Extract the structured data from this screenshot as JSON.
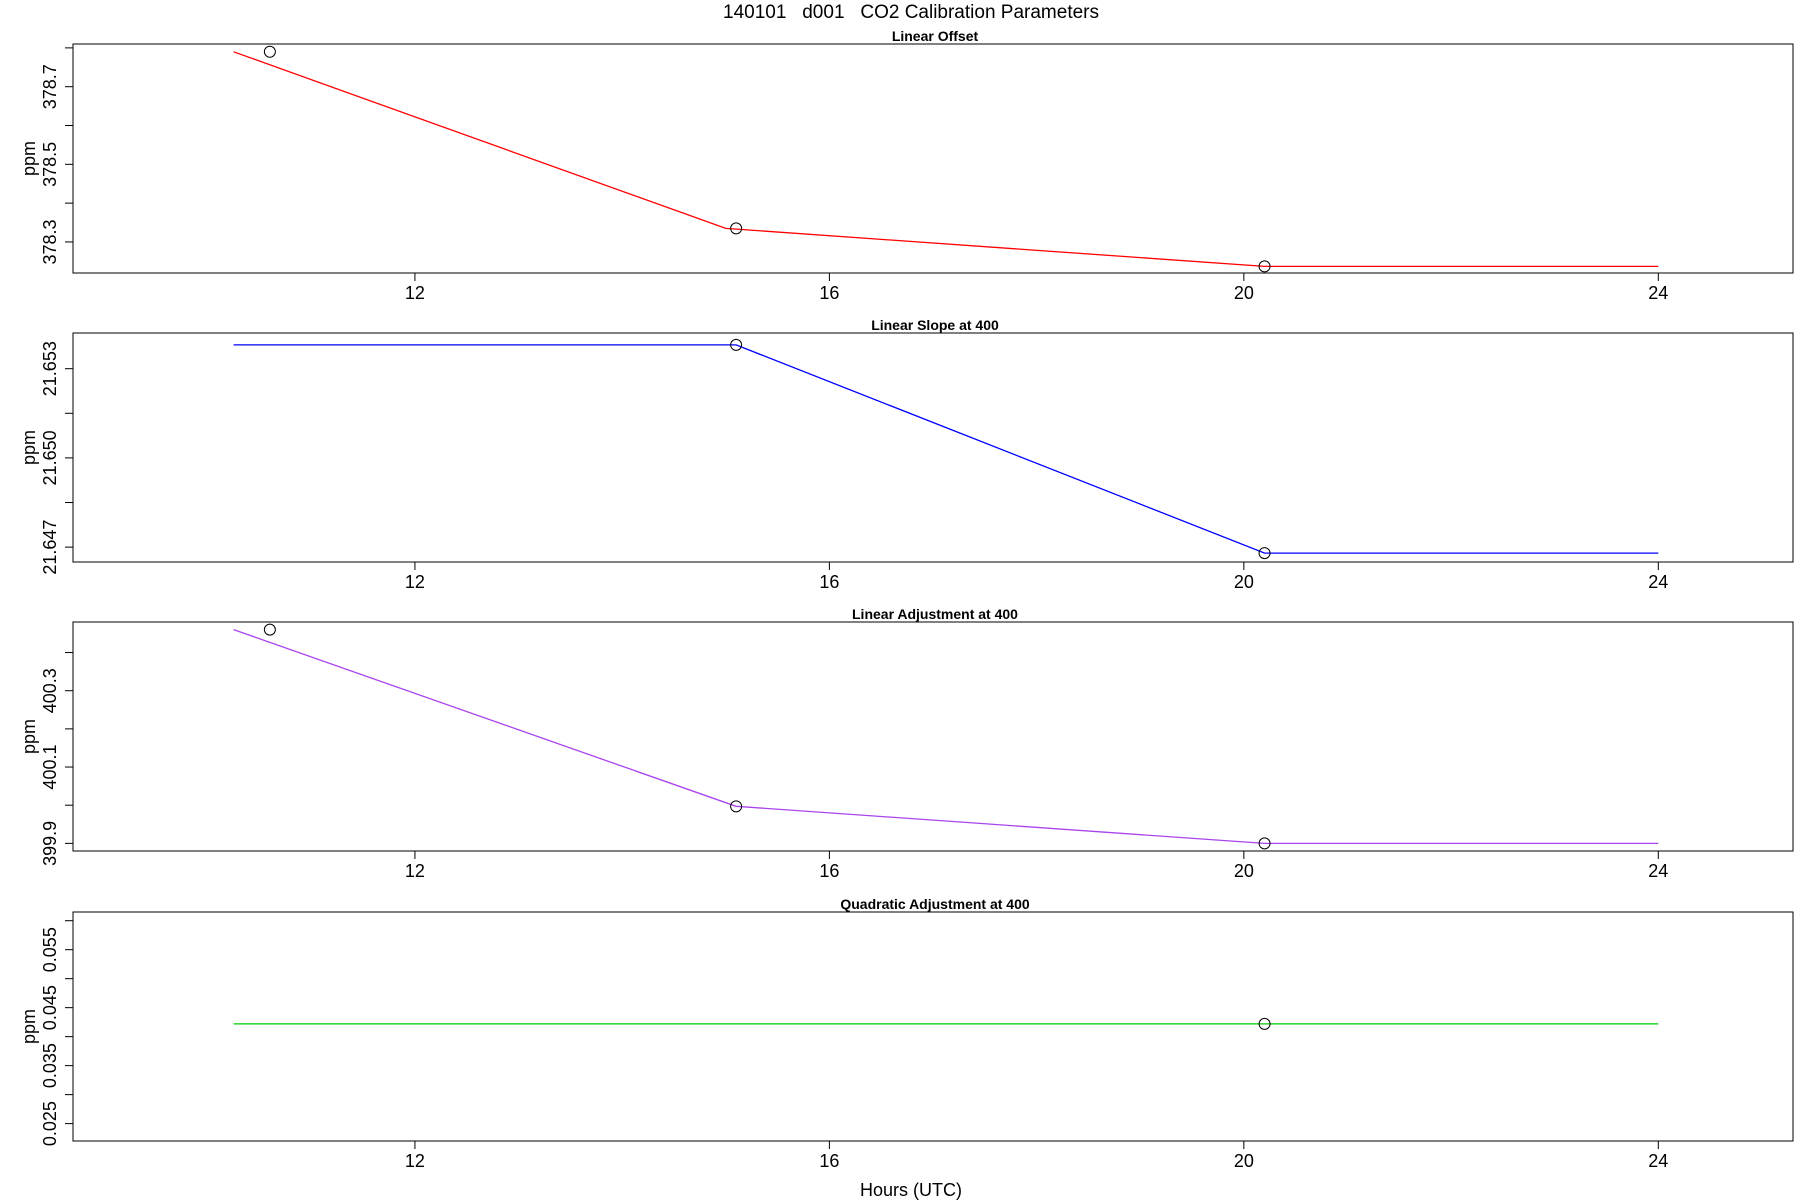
{
  "figure": {
    "title": "140101   d001   CO2 Calibration Parameters",
    "xlabel": "Hours (UTC)"
  },
  "chart_data": [
    {
      "type": "line",
      "title": "Linear Offset",
      "ylabel": "ppm",
      "color": "#ff0000",
      "xlim": [
        8.7,
        25.3
      ],
      "xticks": [
        "12",
        "16",
        "20",
        "24"
      ],
      "ylim": [
        378.22,
        378.81
      ],
      "yticks": [
        "378.3",
        "378.5",
        "378.7"
      ],
      "line": {
        "x": [
          10.25,
          15.0,
          20.2,
          24.0
        ],
        "y": [
          378.79,
          378.335,
          378.237,
          378.237
        ]
      },
      "points": {
        "x": [
          10.6,
          15.1,
          20.2
        ],
        "y": [
          378.79,
          378.335,
          378.237
        ]
      }
    },
    {
      "type": "line",
      "title": "Linear Slope at 400",
      "ylabel": "ppm",
      "color": "#0000ff",
      "xlim": [
        8.7,
        25.3
      ],
      "xticks": [
        "12",
        "16",
        "20",
        "24"
      ],
      "ylim": [
        21.6465,
        21.6542
      ],
      "yticks": [
        "21.647",
        "21.650",
        "21.653"
      ],
      "line": {
        "x": [
          10.25,
          15.1,
          20.2,
          24.0
        ],
        "y": [
          21.6538,
          21.6538,
          21.6468,
          21.6468
        ]
      },
      "points": {
        "x": [
          15.1,
          20.2
        ],
        "y": [
          21.6538,
          21.6468
        ]
      }
    },
    {
      "type": "line",
      "title": "Linear Adjustment at 400",
      "ylabel": "ppm",
      "color": "#aa44ee",
      "xlim": [
        8.7,
        25.3
      ],
      "xticks": [
        "12",
        "16",
        "20",
        "24"
      ],
      "ylim": [
        399.88,
        400.48
      ],
      "yticks": [
        "399.9",
        "400.1",
        "400.3"
      ],
      "line": {
        "x": [
          10.25,
          15.1,
          20.2,
          24.0
        ],
        "y": [
          400.46,
          399.997,
          399.9,
          399.9
        ]
      },
      "points": {
        "x": [
          10.6,
          15.1,
          20.2
        ],
        "y": [
          400.46,
          399.997,
          399.9
        ]
      }
    },
    {
      "type": "line",
      "title": "Quadratic Adjustment at 400",
      "ylabel": "ppm",
      "color": "#00cc00",
      "xlim": [
        8.7,
        25.3
      ],
      "xticks": [
        "12",
        "16",
        "20",
        "24"
      ],
      "ylim": [
        0.022,
        0.0615
      ],
      "yticks": [
        "0.025",
        "0.035",
        "0.045",
        "0.055"
      ],
      "line": {
        "x": [
          10.25,
          24.0
        ],
        "y": [
          0.0422,
          0.0422
        ]
      },
      "points": {
        "x": [
          20.2
        ],
        "y": [
          0.0422
        ]
      }
    }
  ]
}
